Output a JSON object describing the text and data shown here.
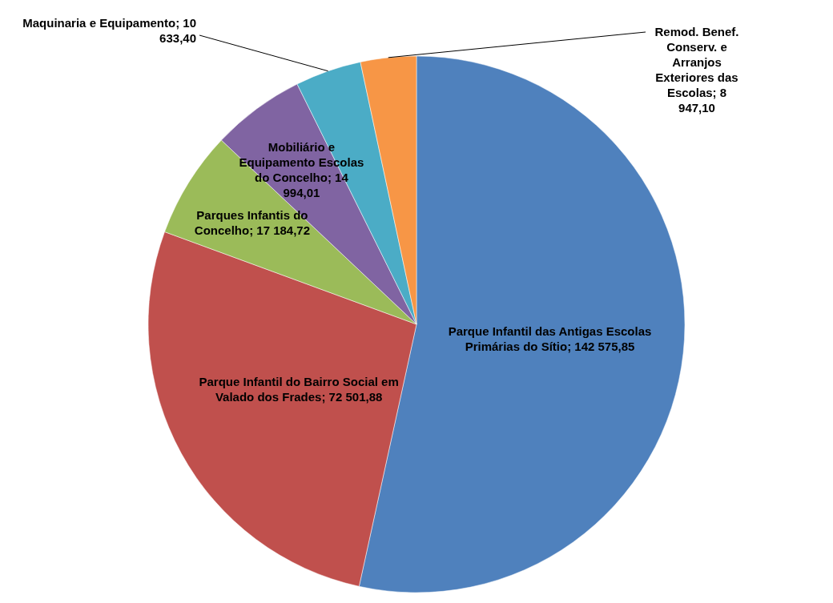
{
  "chart_data": {
    "type": "pie",
    "categories": [
      "Parque Infantil das Antigas Escolas Primárias do Sítio",
      "Parque Infantil do Bairro Social em Valado dos Frades",
      "Parques Infantis do Concelho",
      "Mobiliário e Equipamento  Escolas do Concelho",
      "Maquinaria e Equipamento",
      "Remod. Benef. Conserv. e Arranjos Exteriores das Escolas"
    ],
    "values": [
      142575.85,
      72501.88,
      17184.72,
      14994.01,
      10633.4,
      8947.1
    ],
    "value_labels": [
      "142 575,85",
      "72 501,88",
      "17 184,72",
      "14 994,01",
      "10 633,40",
      "8 947,10"
    ],
    "colors": [
      "#4f81bd",
      "#c0504d",
      "#9bbb59",
      "#8064a2",
      "#4bacc6",
      "#f79646"
    ]
  }
}
